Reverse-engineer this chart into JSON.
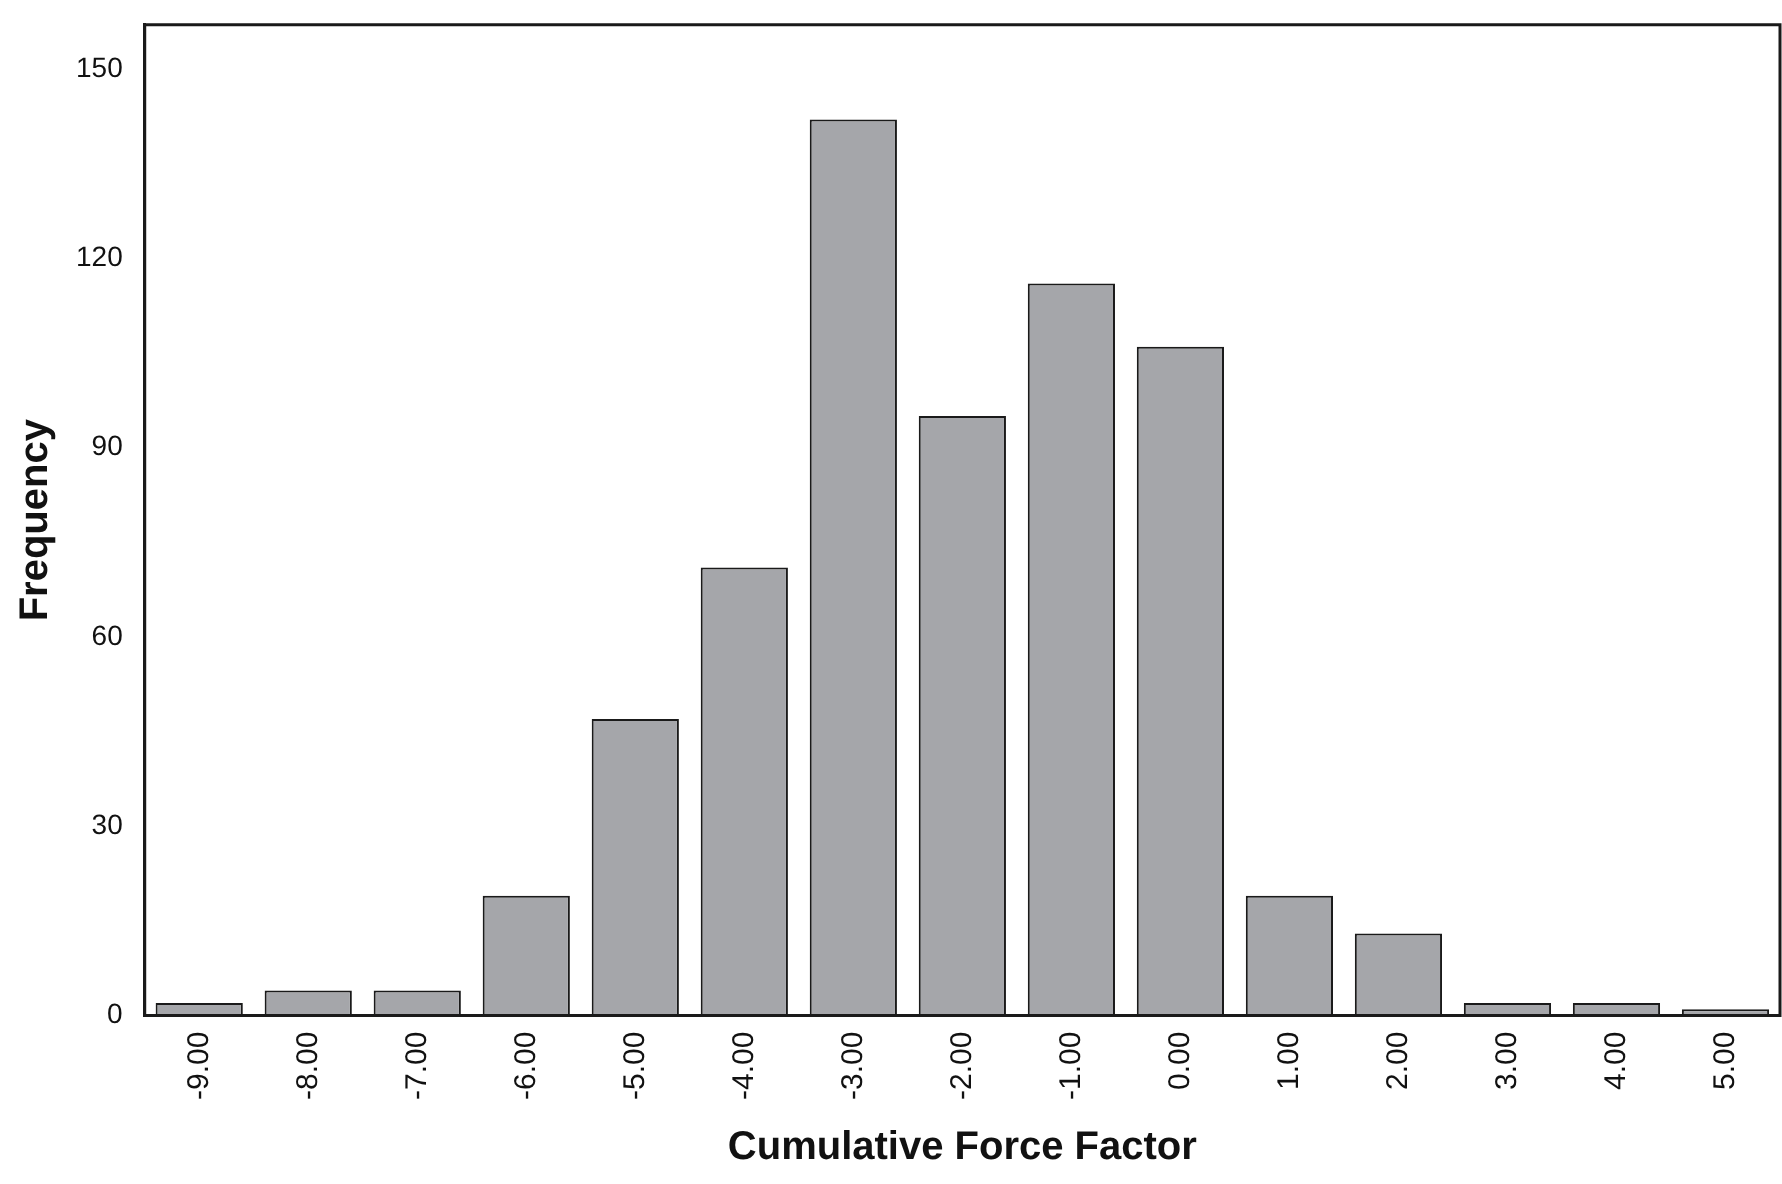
{
  "chart_data": {
    "type": "bar",
    "xlabel": "Cumulative Force Factor",
    "ylabel": "Frequency",
    "categories": [
      "-9.00",
      "-8.00",
      "-7.00",
      "-6.00",
      "-5.00",
      "-4.00",
      "-3.00",
      "-2.00",
      "-1.00",
      "0.00",
      "1.00",
      "2.00",
      "3.00",
      "4.00",
      "5.00"
    ],
    "values": [
      2,
      4,
      4,
      19,
      47,
      71,
      142,
      95,
      116,
      106,
      19,
      13,
      2,
      2,
      1
    ],
    "color": "#a5a6aa",
    "ylim": [
      0,
      157
    ],
    "yticks": [
      0,
      30,
      60,
      90,
      120,
      150
    ],
    "grid": false,
    "legend": false
  }
}
